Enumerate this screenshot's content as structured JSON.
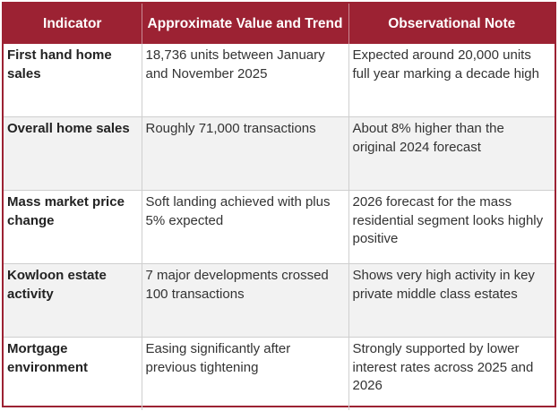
{
  "table": {
    "headers": [
      "Indicator",
      "Approximate Value and Trend",
      "Observational Note"
    ],
    "rows": [
      {
        "indicator": "First hand home sales",
        "value": "18,736 units between January and November 2025",
        "note": "Expected around 20,000 units full year marking a decade high"
      },
      {
        "indicator": "Overall home sales",
        "value": "Roughly 71,000 transactions",
        "note": "About 8% higher than the original 2024 forecast"
      },
      {
        "indicator": "Mass market price change",
        "value": "Soft landing achieved with plus 5% expected",
        "note": "2026 forecast for the mass residential segment looks highly positive"
      },
      {
        "indicator": "Kowloon estate activity",
        "value": "7 major developments crossed 100 transactions",
        "note": "Shows very high activity in key private middle class estates"
      },
      {
        "indicator": "Mortgage environment",
        "value": "Easing significantly after previous tightening",
        "note": "Strongly supported by lower interest rates across 2025 and 2026"
      }
    ]
  },
  "colors": {
    "header_bg": "#9c2233",
    "header_text": "#ffffff",
    "alt_row_bg": "#f2f2f2"
  }
}
